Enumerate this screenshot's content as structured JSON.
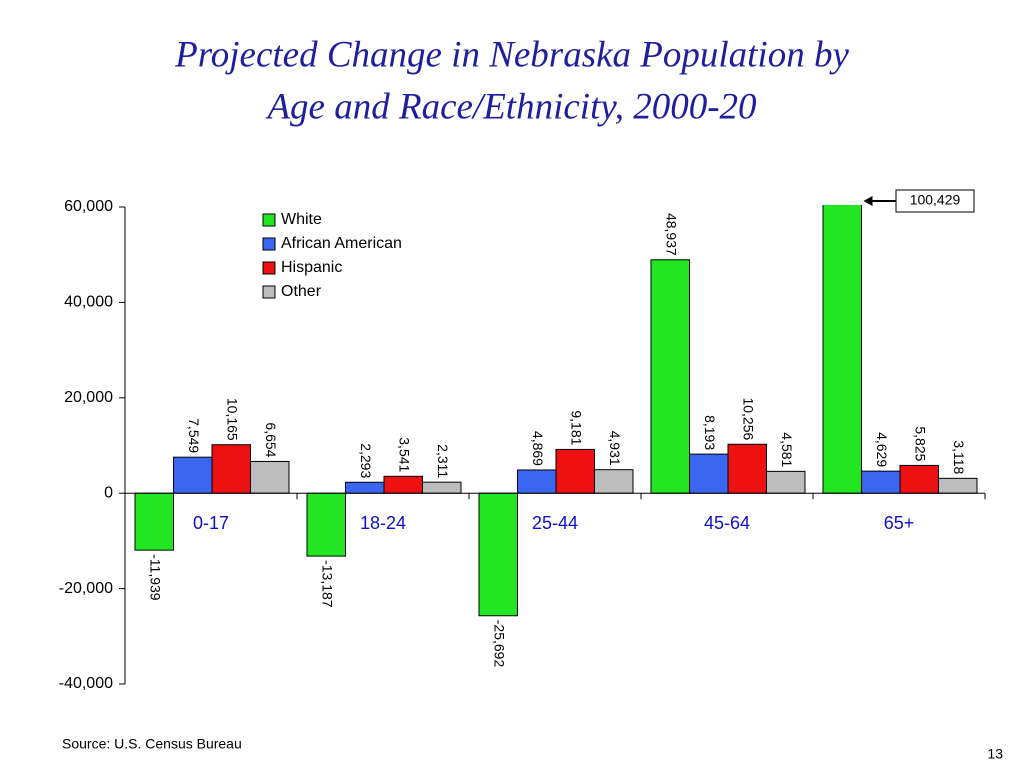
{
  "chart_data": {
    "type": "bar",
    "title_lines": [
      "Projected Change in Nebraska Population by",
      "Age and Race/Ethnicity, 2000-20"
    ],
    "categories": [
      "0-17",
      "18-24",
      "25-44",
      "45-64",
      "65+"
    ],
    "series": [
      {
        "name": "White",
        "color": "#22e622",
        "values": [
          -11939,
          -13187,
          -25692,
          48937,
          100429
        ],
        "value_labels": [
          "-11,939",
          "-13,187",
          "-25,692",
          "48,937",
          "100,429"
        ]
      },
      {
        "name": "African American",
        "color": "#3a66f2",
        "values": [
          7549,
          2293,
          4869,
          8193,
          4629
        ],
        "value_labels": [
          "7,549",
          "2,293",
          "4,869",
          "8,193",
          "4,629"
        ]
      },
      {
        "name": "Hispanic",
        "color": "#ee1111",
        "values": [
          10165,
          3541,
          9181,
          10256,
          5825
        ],
        "value_labels": [
          "10,165",
          "3,541",
          "9,181",
          "10,256",
          "5,825"
        ]
      },
      {
        "name": "Other",
        "color": "#bdbdbd",
        "values": [
          6654,
          2311,
          4931,
          4581,
          3118
        ],
        "value_labels": [
          "6,654",
          "2,311",
          "4,931",
          "4,581",
          "3,118"
        ]
      }
    ],
    "ylim": [
      -40000,
      60000
    ],
    "yticks": [
      {
        "value": -40000,
        "label": "-40,000"
      },
      {
        "value": -20000,
        "label": "-20,000"
      },
      0,
      {
        "value": 20000,
        "label": "20,000"
      },
      {
        "value": 40000,
        "label": "40,000"
      },
      {
        "value": 60000,
        "label": "60,000"
      }
    ],
    "source": "Source:  U.S. Census Bureau",
    "page_number": "13"
  }
}
